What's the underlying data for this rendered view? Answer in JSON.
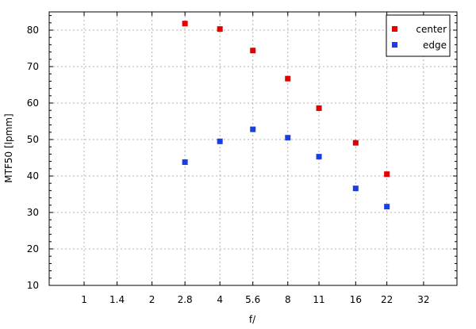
{
  "chart_data": {
    "type": "scatter",
    "title": "",
    "xlabel": "f/",
    "ylabel": "MTF50 [lpmm]",
    "x_scale": "log2",
    "xlim": [
      0.7,
      45
    ],
    "ylim": [
      10,
      85
    ],
    "x_ticks": [
      1,
      1.4,
      2,
      2.8,
      4,
      5.6,
      8,
      11,
      16,
      22,
      32
    ],
    "x_tick_labels": [
      "1",
      "1.4",
      "2",
      "2.8",
      "4",
      "5.6",
      "8",
      "11",
      "16",
      "22",
      "32"
    ],
    "y_ticks": [
      10,
      20,
      30,
      40,
      50,
      60,
      70,
      80
    ],
    "y_tick_labels": [
      "10",
      "20",
      "30",
      "40",
      "50",
      "60",
      "70",
      "80"
    ],
    "grid": true,
    "legend_position": "top-right",
    "series": [
      {
        "name": "center",
        "color": "#e00000",
        "x": [
          2.8,
          4,
          5.6,
          8,
          11,
          16,
          22
        ],
        "y": [
          81.8,
          80.3,
          74.4,
          66.7,
          58.6,
          49.1,
          40.5
        ]
      },
      {
        "name": "edge",
        "color": "#1a3fe0",
        "x": [
          2.8,
          4,
          5.6,
          8,
          11,
          16,
          22
        ],
        "y": [
          43.8,
          49.5,
          52.8,
          50.5,
          45.3,
          36.6,
          31.6
        ]
      }
    ]
  }
}
